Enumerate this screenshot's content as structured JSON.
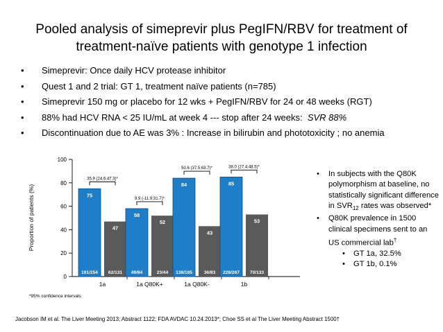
{
  "slide": {
    "title_line1": "Pooled analysis of simeprevir plus PegIFN/RBV  for treatment of",
    "title_line2": "treatment-naïve patients with genotype 1 infection",
    "bullets": [
      "Simeprevir:  Once daily HCV protease inhibitor",
      "Quest 1 and 2 trial:  GT 1, treatment naïve patients (n=785)",
      "Simeprevir 150 mg or placebo for 12 wks + PegIFN/RBV for 24 or 48 weeks (RGT)",
      "88% had HCV RNA < 25 IU/mL at week 4 --- stop after 24 weeks:",
      "Discontinuation due to AE was 3% :   Increase in bilirubin and phototoxicity ; no anemia"
    ],
    "bullet4_emphasis": "SVR 88%",
    "bullet_glyph": "•",
    "side_notes": [
      "In subjects with the Q80K polymorphism at baseline, no statistically significant difference in SVR",
      "Q80K prevalence in 1500 clinical specimens sent to an US commercial lab"
    ],
    "side_note1_sub": "12",
    "side_note1_tail": " rates was observed*",
    "side_note2_mark": "†",
    "side_subitems": [
      "GT 1a, 32.5%",
      "GT 1b, 0.1%"
    ],
    "citation": "Jacobson IM et al.  The Liver Meeting 2013; Abstract 1122; FDA AVDAC 10.24.2013*; Choe SS et al The Liver Meeting Abstract 1500†"
  },
  "chart_data": {
    "type": "bar",
    "categories": [
      "1a",
      "1a Q80K+",
      "1a Q80K-",
      "1b"
    ],
    "series": [
      {
        "values": [
          75,
          58,
          84,
          85
        ],
        "counts": [
          "191/254",
          "49/84",
          "138/165",
          "228/267"
        ]
      },
      {
        "values": [
          47,
          52,
          43,
          53
        ],
        "counts": [
          "62/131",
          "23/44",
          "36/83",
          "70/133"
        ]
      }
    ],
    "differences": [
      "35.9 (24.6;47.3)*",
      "9.9 (-11.9;31.7)*",
      "50.6 (37.5;63.7)*",
      "38.0 (27.4;48.5)*"
    ],
    "ylabel": "Proportion of patients (%)",
    "ylim": [
      0,
      100
    ],
    "yticks": [
      0,
      20,
      40,
      60,
      80,
      100
    ],
    "footnote": "*95% confidence intervals",
    "colors": {
      "series1": "#1e7ec8",
      "series2": "#5a5a5a",
      "series1_edge": "#0b4f86"
    },
    "grid": false,
    "legend": "none"
  }
}
